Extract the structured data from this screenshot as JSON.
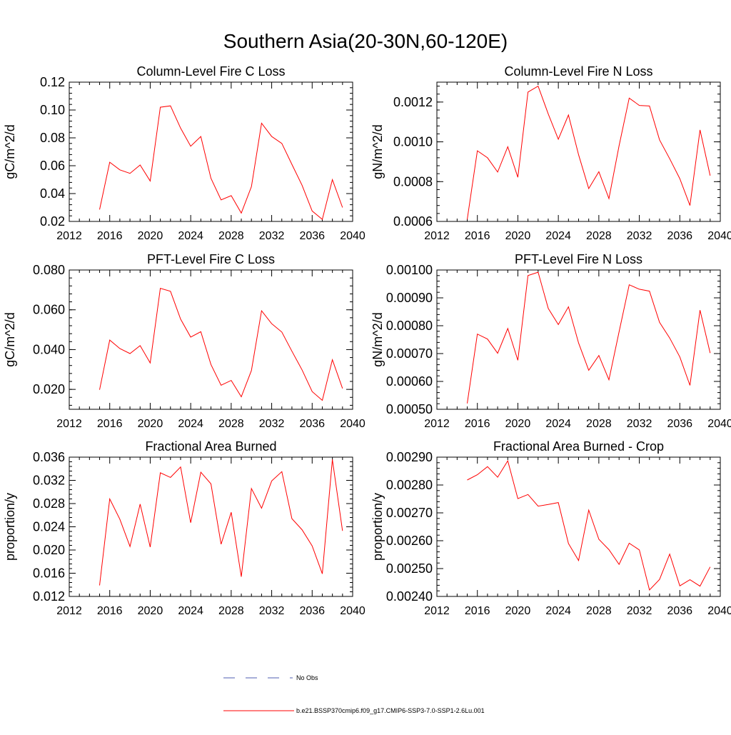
{
  "main_title": "Southern Asia(20-30N,60-120E)",
  "colors": {
    "model_line": "#ff0000",
    "obs_line": "#4f5db0",
    "axis": "#000000"
  },
  "legend": {
    "obs_label": "No Obs",
    "model_label": "b.e21.BSSP370cmip6.f09_g17.CMIP6-SSP3-7.0-SSP1-2.6Lu.001"
  },
  "chart_data": [
    {
      "type": "line",
      "title": "Column-Level Fire C Loss",
      "ylabel": "gC/m^2/d",
      "xlim": [
        2012,
        2040
      ],
      "ylim": [
        0.02,
        0.12
      ],
      "xticks": [
        "2012",
        "2016",
        "2020",
        "2024",
        "2028",
        "2032",
        "2036",
        "2040"
      ],
      "yticks": [
        "0.02",
        "0.04",
        "0.06",
        "0.08",
        "0.10",
        "0.12"
      ],
      "x": [
        2015,
        2016,
        2017,
        2018,
        2019,
        2020,
        2021,
        2022,
        2023,
        2024,
        2025,
        2026,
        2027,
        2028,
        2029,
        2030,
        2031,
        2032,
        2033,
        2034,
        2035,
        2036,
        2037,
        2038,
        2039
      ],
      "values": [
        0.0285,
        0.0625,
        0.057,
        0.0545,
        0.0605,
        0.049,
        0.102,
        0.103,
        0.087,
        0.074,
        0.081,
        0.051,
        0.0355,
        0.0385,
        0.026,
        0.045,
        0.0905,
        0.081,
        0.076,
        0.061,
        0.046,
        0.0275,
        0.0215,
        0.05,
        0.03
      ]
    },
    {
      "type": "line",
      "title": "Column-Level Fire N Loss",
      "ylabel": "gN/m^2/d",
      "xlim": [
        2012,
        2040
      ],
      "ylim": [
        0.0006,
        0.0013
      ],
      "xticks": [
        "2012",
        "2016",
        "2020",
        "2024",
        "2028",
        "2032",
        "2036",
        "2040"
      ],
      "yticks": [
        "0.0006",
        "0.0008",
        "0.0010",
        "0.0012"
      ],
      "x": [
        2015,
        2016,
        2017,
        2018,
        2019,
        2020,
        2021,
        2022,
        2023,
        2024,
        2025,
        2026,
        2027,
        2028,
        2029,
        2030,
        2031,
        2032,
        2033,
        2034,
        2035,
        2036,
        2037,
        2038,
        2039
      ],
      "values": [
        0.00061,
        0.000955,
        0.00092,
        0.000848,
        0.000975,
        0.000822,
        0.00125,
        0.00128,
        0.00114,
        0.001013,
        0.001135,
        0.000935,
        0.000765,
        0.00085,
        0.000715,
        0.00098,
        0.00122,
        0.001183,
        0.00118,
        0.00101,
        0.000915,
        0.000815,
        0.00068,
        0.00106,
        0.00083
      ]
    },
    {
      "type": "line",
      "title": "PFT-Level Fire C Loss",
      "ylabel": "gC/m^2/d",
      "xlim": [
        2012,
        2040
      ],
      "ylim": [
        0.01,
        0.08
      ],
      "xticks": [
        "2012",
        "2016",
        "2020",
        "2024",
        "2028",
        "2032",
        "2036",
        "2040"
      ],
      "yticks": [
        "0.020",
        "0.040",
        "0.060",
        "0.080"
      ],
      "x": [
        2015,
        2016,
        2017,
        2018,
        2019,
        2020,
        2021,
        2022,
        2023,
        2024,
        2025,
        2026,
        2027,
        2028,
        2029,
        2030,
        2031,
        2032,
        2033,
        2034,
        2035,
        2036,
        2037,
        2038,
        2039
      ],
      "values": [
        0.0198,
        0.0448,
        0.0405,
        0.038,
        0.042,
        0.0333,
        0.0708,
        0.0693,
        0.0553,
        0.0463,
        0.049,
        0.0325,
        0.0221,
        0.0245,
        0.0163,
        0.0295,
        0.0595,
        0.053,
        0.0488,
        0.0392,
        0.0298,
        0.0189,
        0.0145,
        0.0349,
        0.0205
      ]
    },
    {
      "type": "line",
      "title": "PFT-Level Fire N Loss",
      "ylabel": "gN/m^2/d",
      "xlim": [
        2012,
        2040
      ],
      "ylim": [
        0.0005,
        0.001
      ],
      "xticks": [
        "2012",
        "2016",
        "2020",
        "2024",
        "2028",
        "2032",
        "2036",
        "2040"
      ],
      "yticks": [
        "0.00050",
        "0.00060",
        "0.00070",
        "0.00080",
        "0.00090",
        "0.00100"
      ],
      "x": [
        2015,
        2016,
        2017,
        2018,
        2019,
        2020,
        2021,
        2022,
        2023,
        2024,
        2025,
        2026,
        2027,
        2028,
        2029,
        2030,
        2031,
        2032,
        2033,
        2034,
        2035,
        2036,
        2037,
        2038,
        2039
      ],
      "values": [
        0.000521,
        0.00077,
        0.000752,
        0.000701,
        0.00079,
        0.000676,
        0.00098,
        0.000992,
        0.000862,
        0.000804,
        0.000868,
        0.000738,
        0.00064,
        0.000693,
        0.000606,
        0.000778,
        0.000947,
        0.000931,
        0.000924,
        0.000812,
        0.000756,
        0.000688,
        0.000586,
        0.000856,
        0.000702
      ]
    },
    {
      "type": "line",
      "title": "Fractional Area Burned",
      "ylabel": "proportion/y",
      "xlim": [
        2012,
        2040
      ],
      "ylim": [
        0.012,
        0.036
      ],
      "xticks": [
        "2012",
        "2016",
        "2020",
        "2024",
        "2028",
        "2032",
        "2036",
        "2040"
      ],
      "yticks": [
        "0.012",
        "0.016",
        "0.020",
        "0.024",
        "0.028",
        "0.032",
        "0.036"
      ],
      "x": [
        2015,
        2016,
        2017,
        2018,
        2019,
        2020,
        2021,
        2022,
        2023,
        2024,
        2025,
        2026,
        2027,
        2028,
        2029,
        2030,
        2031,
        2032,
        2033,
        2034,
        2035,
        2036,
        2037,
        2038,
        2039
      ],
      "values": [
        0.0139,
        0.0288,
        0.0253,
        0.0206,
        0.0279,
        0.0205,
        0.0333,
        0.0325,
        0.0343,
        0.0247,
        0.0334,
        0.0314,
        0.021,
        0.0265,
        0.0154,
        0.0306,
        0.0272,
        0.0319,
        0.0335,
        0.0254,
        0.0235,
        0.0207,
        0.0159,
        0.0356,
        0.0233
      ]
    },
    {
      "type": "line",
      "title": "Fractional Area Burned - Crop",
      "ylabel": "proportion/y",
      "xlim": [
        2012,
        2040
      ],
      "ylim": [
        0.0024,
        0.0029
      ],
      "xticks": [
        "2012",
        "2016",
        "2020",
        "2024",
        "2028",
        "2032",
        "2036",
        "2040"
      ],
      "yticks": [
        "0.00240",
        "0.00250",
        "0.00260",
        "0.00270",
        "0.00280",
        "0.00290"
      ],
      "x": [
        2015,
        2016,
        2017,
        2018,
        2019,
        2020,
        2021,
        2022,
        2023,
        2024,
        2025,
        2026,
        2027,
        2028,
        2029,
        2030,
        2031,
        2032,
        2033,
        2034,
        2035,
        2036,
        2037,
        2038,
        2039
      ],
      "values": [
        0.002818,
        0.002837,
        0.002866,
        0.002828,
        0.002887,
        0.002751,
        0.002766,
        0.002724,
        0.00273,
        0.002737,
        0.00259,
        0.002529,
        0.00271,
        0.002605,
        0.002568,
        0.002515,
        0.002591,
        0.002567,
        0.002423,
        0.002461,
        0.002552,
        0.002438,
        0.00246,
        0.002437,
        0.002506
      ]
    }
  ]
}
